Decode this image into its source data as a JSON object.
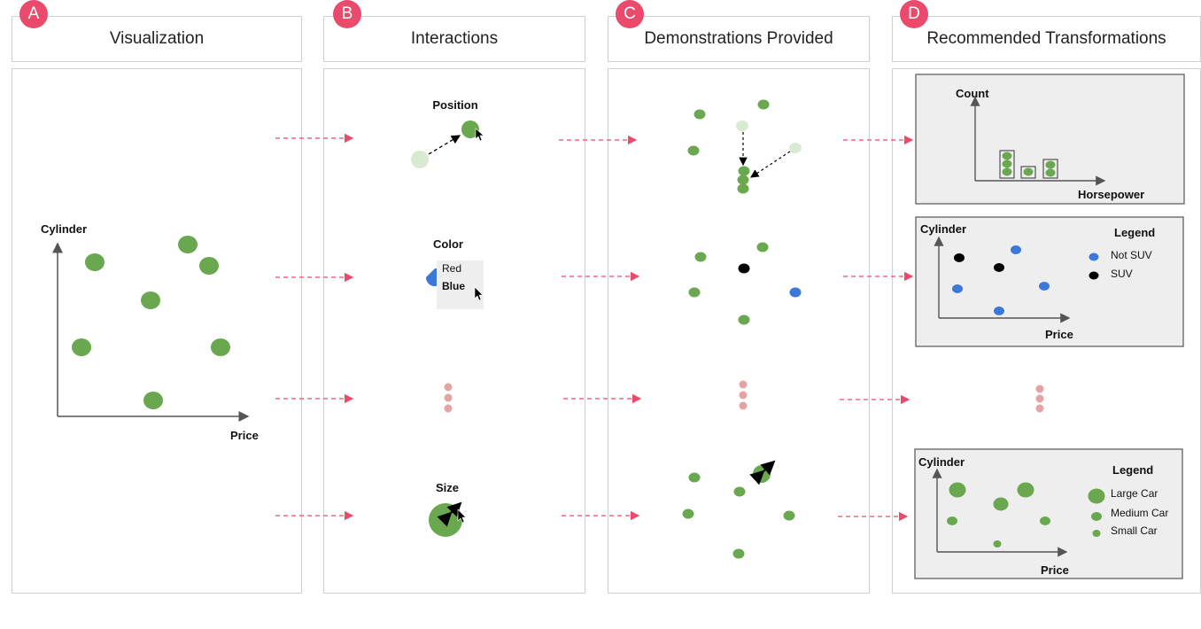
{
  "badges": [
    "A",
    "B",
    "C",
    "D"
  ],
  "columns": [
    "Visualization",
    "Interactions",
    "Demonstrations Provided",
    "Recommended Transformations"
  ],
  "visualization": {
    "y_axis": "Cylinder",
    "x_axis": "Price"
  },
  "interactions": {
    "position": "Position",
    "color": "Color",
    "color_options": [
      "Red",
      "Blue"
    ],
    "size": "Size"
  },
  "recommended": {
    "histogram": {
      "y_axis": "Count",
      "x_axis": "Horsepower"
    },
    "color_plot": {
      "y_axis": "Cylinder",
      "x_axis": "Price",
      "legend_title": "Legend",
      "legend_items": [
        "Not SUV",
        "SUV"
      ]
    },
    "size_plot": {
      "y_axis": "Cylinder",
      "x_axis": "Price",
      "legend_title": "Legend",
      "legend_items": [
        "Large Car",
        "Medium Car",
        "Small Car"
      ]
    }
  },
  "colors": {
    "accent": "#ea4b6d",
    "green": "#6aa84f",
    "light_green": "#d9ead3",
    "blue": "#3c78d8",
    "black": "#000000",
    "arrow": "#ea4b6d",
    "panel_fill": "#eeeeee"
  }
}
